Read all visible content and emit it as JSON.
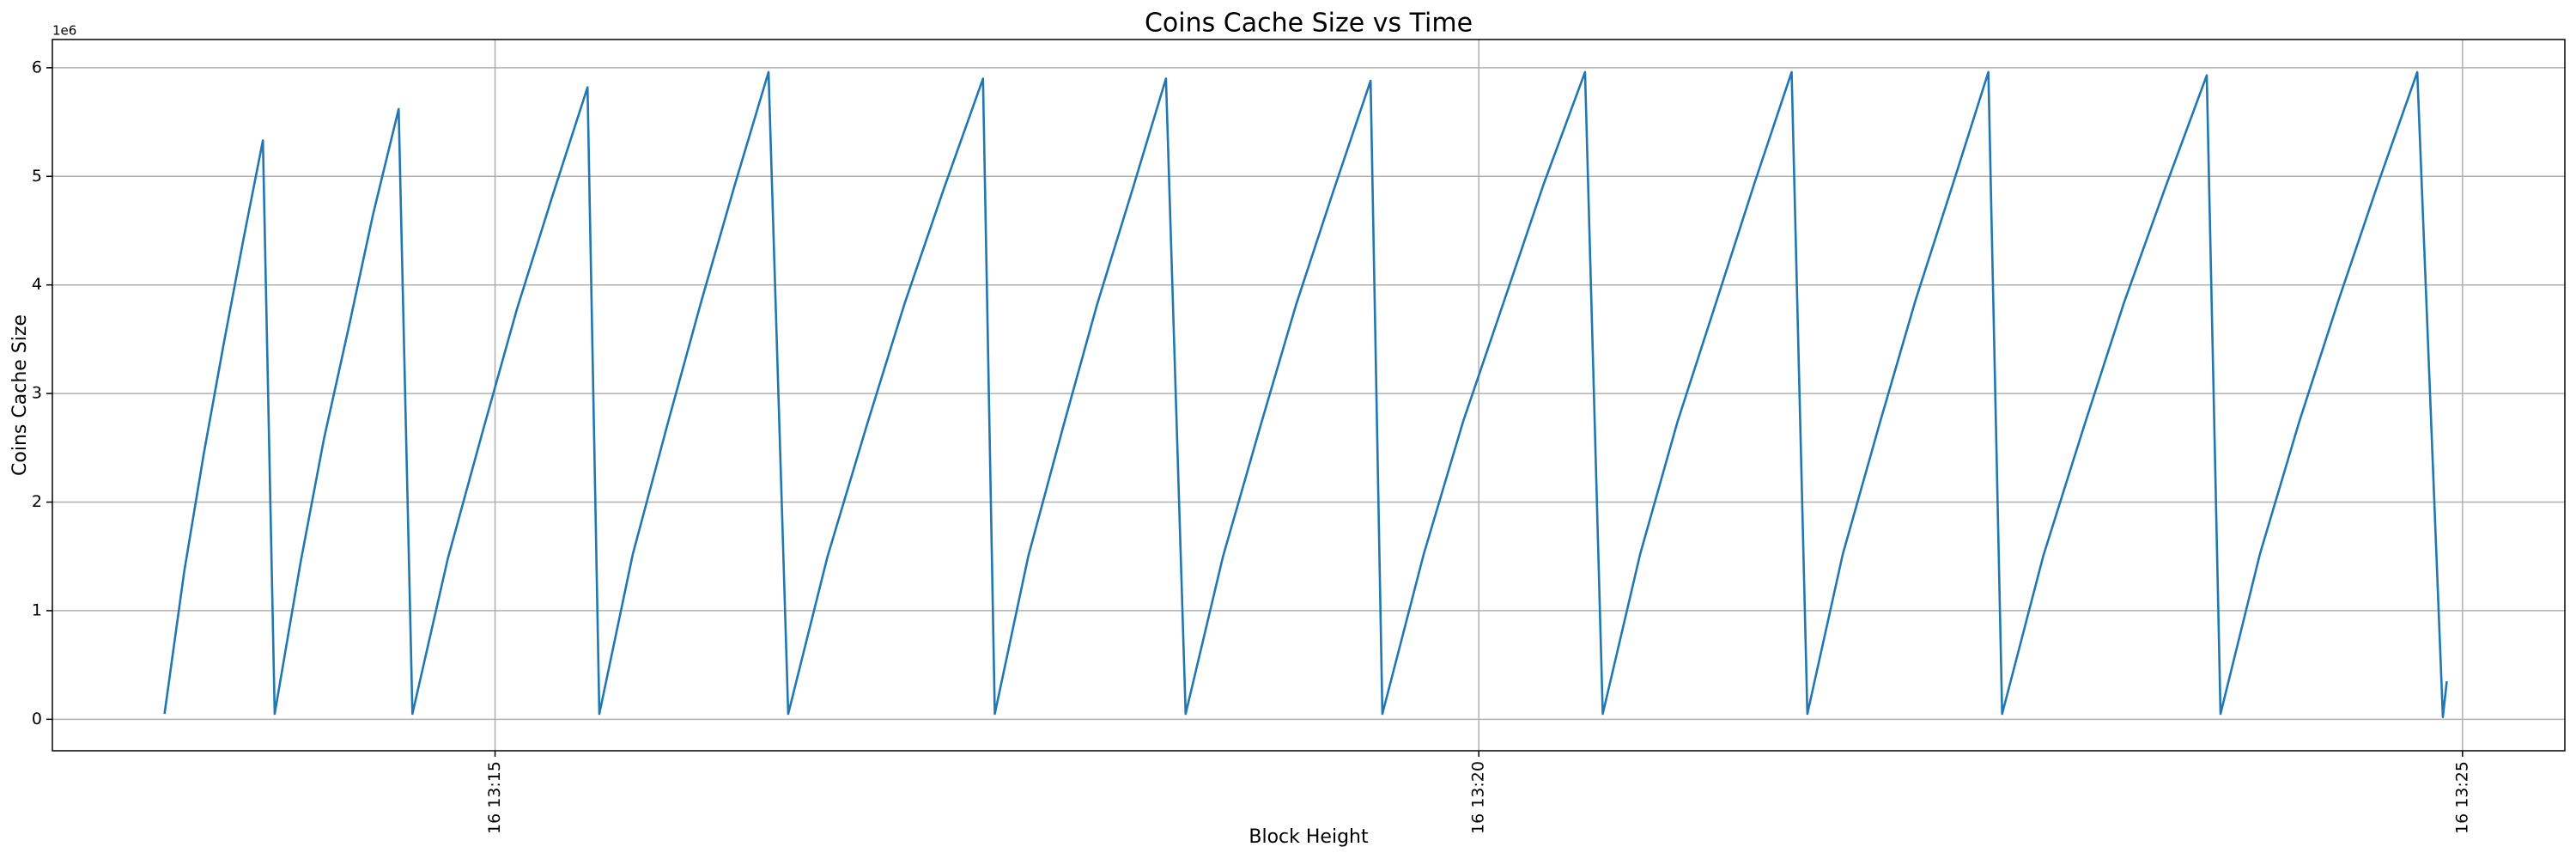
{
  "chart_data": {
    "type": "line",
    "title": "Coins Cache Size vs Time",
    "xlabel": "Block Height",
    "ylabel": "Coins Cache Size",
    "y_multiplier": "1e6",
    "color": "#1f77b4",
    "grid": true,
    "xlim": [
      12.75,
      25.52
    ],
    "xticks": [
      {
        "value": 15,
        "label": "16 13:15"
      },
      {
        "value": 20,
        "label": "16 13:20"
      },
      {
        "value": 25,
        "label": "16 13:25"
      }
    ],
    "ylim": [
      -0.29,
      6.26
    ],
    "yticks": [
      0,
      1,
      2,
      3,
      4,
      5,
      6
    ],
    "x": [
      13.32,
      13.42,
      13.52,
      13.62,
      13.72,
      13.82,
      13.88,
      14.01,
      14.13,
      14.26,
      14.38,
      14.51,
      14.58,
      14.76,
      14.94,
      15.11,
      15.29,
      15.47,
      15.53,
      15.7,
      15.88,
      16.05,
      16.22,
      16.39,
      16.49,
      16.69,
      16.89,
      17.08,
      17.28,
      17.48,
      17.54,
      17.71,
      17.89,
      18.06,
      18.24,
      18.41,
      18.51,
      18.7,
      18.89,
      19.07,
      19.26,
      19.45,
      19.51,
      19.72,
      19.92,
      20.13,
      20.33,
      20.54,
      20.63,
      20.82,
      21.01,
      21.21,
      21.4,
      21.59,
      21.67,
      21.85,
      22.04,
      22.22,
      22.41,
      22.59,
      22.66,
      22.87,
      23.08,
      23.28,
      23.49,
      23.7,
      23.77,
      23.97,
      24.17,
      24.37,
      24.57,
      24.77,
      24.9,
      24.92
    ],
    "values": [
      0.05,
      1.36,
      2.45,
      3.45,
      4.41,
      5.33,
      0.05,
      1.43,
      2.58,
      3.64,
      4.65,
      5.62,
      0.05,
      1.48,
      2.67,
      3.77,
      4.81,
      5.82,
      0.05,
      1.52,
      2.74,
      3.86,
      4.93,
      5.96,
      0.05,
      1.5,
      2.71,
      3.82,
      4.88,
      5.9,
      0.05,
      1.5,
      2.71,
      3.82,
      4.88,
      5.9,
      0.05,
      1.5,
      2.7,
      3.81,
      4.86,
      5.88,
      0.05,
      1.52,
      2.74,
      3.86,
      4.93,
      5.96,
      0.05,
      1.52,
      2.74,
      3.86,
      4.93,
      5.96,
      0.05,
      1.52,
      2.74,
      3.86,
      4.93,
      5.96,
      0.05,
      1.51,
      2.72,
      3.84,
      4.9,
      5.93,
      0.05,
      1.52,
      2.74,
      3.86,
      4.93,
      5.96,
      0.02,
      0.35
    ]
  }
}
